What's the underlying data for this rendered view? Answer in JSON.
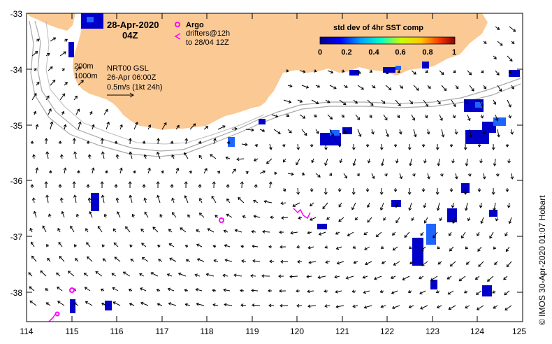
{
  "map": {
    "date_line1": "28-Apr-2020",
    "date_line2": "04Z",
    "argo_label": "Argo",
    "drifters_line1": "drifters@12h",
    "drifters_line2": "to 28/04 12Z",
    "isobath_1": "200m",
    "isobath_2": "1000m",
    "product_line1": "NRT00 GSL",
    "product_line2": "26-Apr 06:00Z",
    "scale_label": "0.5m/s (1kt 24h)",
    "credit": "© IMOS 30-Apr-2020 01:07 Hobart",
    "colors": {
      "land": "#fbc994",
      "argo": "#ff00ff",
      "isobath": "#a9a9a9",
      "sst_low": "#0000c8",
      "sst_mid": "#1e64ff"
    }
  },
  "legend": {
    "title": "std dev of 4hr SST comp",
    "ticks": [
      "0",
      "0.2",
      "0.4",
      "0.6",
      "0.8",
      "1"
    ],
    "range": [
      0,
      1
    ]
  },
  "axes": {
    "x_ticks": [
      "114",
      "115",
      "116",
      "117",
      "118",
      "119",
      "120",
      "121",
      "122",
      "123",
      "124",
      "125"
    ],
    "y_ticks": [
      "-33",
      "-34",
      "-35",
      "-36",
      "-37",
      "-38"
    ]
  }
}
